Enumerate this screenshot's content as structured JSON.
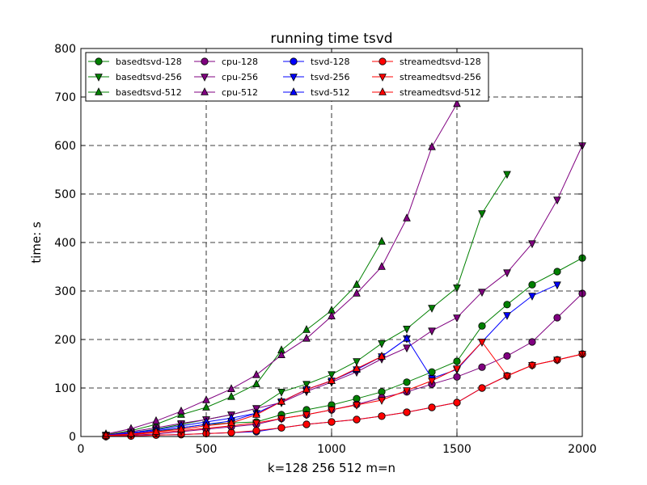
{
  "chart_data": {
    "type": "line",
    "title": "running time tsvd",
    "xlabel": "k=128 256 512 m=n",
    "ylabel": "time: s",
    "xlim": [
      0,
      2000
    ],
    "ylim": [
      0,
      800
    ],
    "xticks": [
      0,
      500,
      1000,
      1500,
      2000
    ],
    "yticks": [
      0,
      100,
      200,
      300,
      400,
      500,
      600,
      700,
      800
    ],
    "grid": true,
    "grid_style": "dashed",
    "legend_position": "upper-left",
    "series": [
      {
        "name": "basedtsvd-128",
        "color": "#008000",
        "marker": "circle",
        "x": [
          100,
          200,
          300,
          400,
          500,
          600,
          700,
          800,
          900,
          1000,
          1100,
          1200,
          1300,
          1400,
          1500,
          1600,
          1700,
          1800,
          1900,
          2000
        ],
        "y": [
          1,
          5,
          10,
          18,
          25,
          28,
          30,
          45,
          55,
          65,
          78,
          92,
          112,
          133,
          155,
          228,
          272,
          313,
          340,
          368
        ]
      },
      {
        "name": "basedtsvd-256",
        "color": "#008000",
        "marker": "triangle-down",
        "x": [
          100,
          200,
          300,
          400,
          500,
          600,
          700,
          800,
          900,
          1000,
          1100,
          1200,
          1300,
          1400,
          1500,
          1600,
          1700
        ],
        "y": [
          3,
          8,
          15,
          25,
          35,
          45,
          58,
          92,
          108,
          128,
          155,
          192,
          222,
          265,
          307,
          460,
          541
        ]
      },
      {
        "name": "basedtsvd-512",
        "color": "#008000",
        "marker": "triangle-up",
        "x": [
          100,
          200,
          300,
          400,
          500,
          600,
          700,
          800,
          900,
          1000,
          1100,
          1200
        ],
        "y": [
          4,
          12,
          25,
          45,
          60,
          82,
          108,
          178,
          220,
          260,
          313,
          402
        ]
      },
      {
        "name": "cpu-128",
        "color": "#800080",
        "marker": "circle",
        "x": [
          100,
          200,
          300,
          400,
          500,
          600,
          700,
          800,
          900,
          1000,
          1100,
          1200,
          1300,
          1400,
          1500,
          1600,
          1700,
          1800,
          1900,
          2000
        ],
        "y": [
          1,
          3,
          5,
          10,
          15,
          20,
          25,
          37,
          45,
          55,
          66,
          80,
          92,
          108,
          123,
          143,
          166,
          195,
          245,
          295
        ]
      },
      {
        "name": "cpu-256",
        "color": "#800080",
        "marker": "triangle-down",
        "x": [
          100,
          200,
          300,
          400,
          500,
          600,
          700,
          800,
          900,
          1000,
          1100,
          1200,
          1300,
          1400,
          1500,
          1600,
          1700,
          1800,
          1900,
          2000
        ],
        "y": [
          3,
          10,
          18,
          27,
          35,
          45,
          58,
          70,
          93,
          112,
          133,
          160,
          183,
          218,
          245,
          298,
          338,
          398,
          488,
          600
        ]
      },
      {
        "name": "cpu-512",
        "color": "#800080",
        "marker": "triangle-up",
        "x": [
          100,
          200,
          300,
          400,
          500,
          600,
          700,
          800,
          900,
          1000,
          1100,
          1200,
          1300,
          1400,
          1500
        ],
        "y": [
          5,
          16,
          32,
          52,
          75,
          98,
          127,
          168,
          202,
          248,
          295,
          350,
          450,
          597,
          686
        ]
      },
      {
        "name": "tsvd-128",
        "color": "#0000ff",
        "marker": "circle",
        "x": [
          100,
          200,
          300,
          400,
          500,
          600,
          700,
          800,
          900,
          1000,
          1100,
          1200,
          1300,
          1400,
          1500,
          1600,
          1700,
          1800,
          1900,
          2000
        ],
        "y": [
          0,
          1,
          3,
          4,
          6,
          8,
          10,
          18,
          25,
          30,
          35,
          42,
          50,
          60,
          70,
          100,
          125,
          147,
          158,
          170
        ]
      },
      {
        "name": "tsvd-256",
        "color": "#0000ff",
        "marker": "triangle-down",
        "x": [
          100,
          200,
          300,
          400,
          500,
          600,
          700,
          800,
          900,
          1000,
          1100,
          1200,
          1300,
          1400,
          1500,
          1600,
          1700,
          1800,
          1900
        ],
        "y": [
          2,
          6,
          12,
          18,
          25,
          32,
          48,
          72,
          97,
          115,
          138,
          165,
          202,
          120,
          138,
          195,
          250,
          290,
          313
        ]
      },
      {
        "name": "tsvd-512",
        "color": "#0000ff",
        "marker": "triangle-up",
        "x": [
          100,
          200,
          300,
          400,
          500,
          600,
          700,
          800,
          900,
          1000,
          1100,
          1200,
          1300
        ],
        "y": [
          3,
          8,
          14,
          22,
          30,
          38,
          48,
          72,
          97,
          115,
          138,
          165,
          202
        ]
      },
      {
        "name": "streamedtsvd-128",
        "color": "#ff0000",
        "marker": "circle",
        "x": [
          100,
          200,
          300,
          400,
          500,
          600,
          700,
          800,
          900,
          1000,
          1100,
          1200,
          1300,
          1400,
          1500,
          1600,
          1700,
          1800,
          1900,
          2000
        ],
        "y": [
          0,
          1,
          3,
          4,
          6,
          8,
          12,
          18,
          25,
          30,
          35,
          42,
          50,
          60,
          70,
          100,
          125,
          147,
          158,
          170
        ]
      },
      {
        "name": "streamedtsvd-256",
        "color": "#ff0000",
        "marker": "triangle-down",
        "x": [
          100,
          200,
          300,
          400,
          500,
          600,
          700,
          800,
          900,
          1000,
          1100,
          1200,
          1300,
          1400,
          1500,
          1600,
          1700,
          1800,
          1900,
          2000
        ],
        "y": [
          1,
          4,
          8,
          12,
          17,
          22,
          28,
          37,
          45,
          55,
          65,
          75,
          95,
          115,
          140,
          195,
          125,
          147,
          158,
          170
        ]
      },
      {
        "name": "streamedtsvd-512",
        "color": "#ff0000",
        "marker": "triangle-up",
        "x": [
          100,
          200,
          300,
          400,
          500,
          600,
          700,
          800,
          900,
          1000,
          1100,
          1200
        ],
        "y": [
          2,
          5,
          10,
          15,
          22,
          28,
          45,
          72,
          97,
          115,
          140,
          165
        ]
      }
    ]
  }
}
